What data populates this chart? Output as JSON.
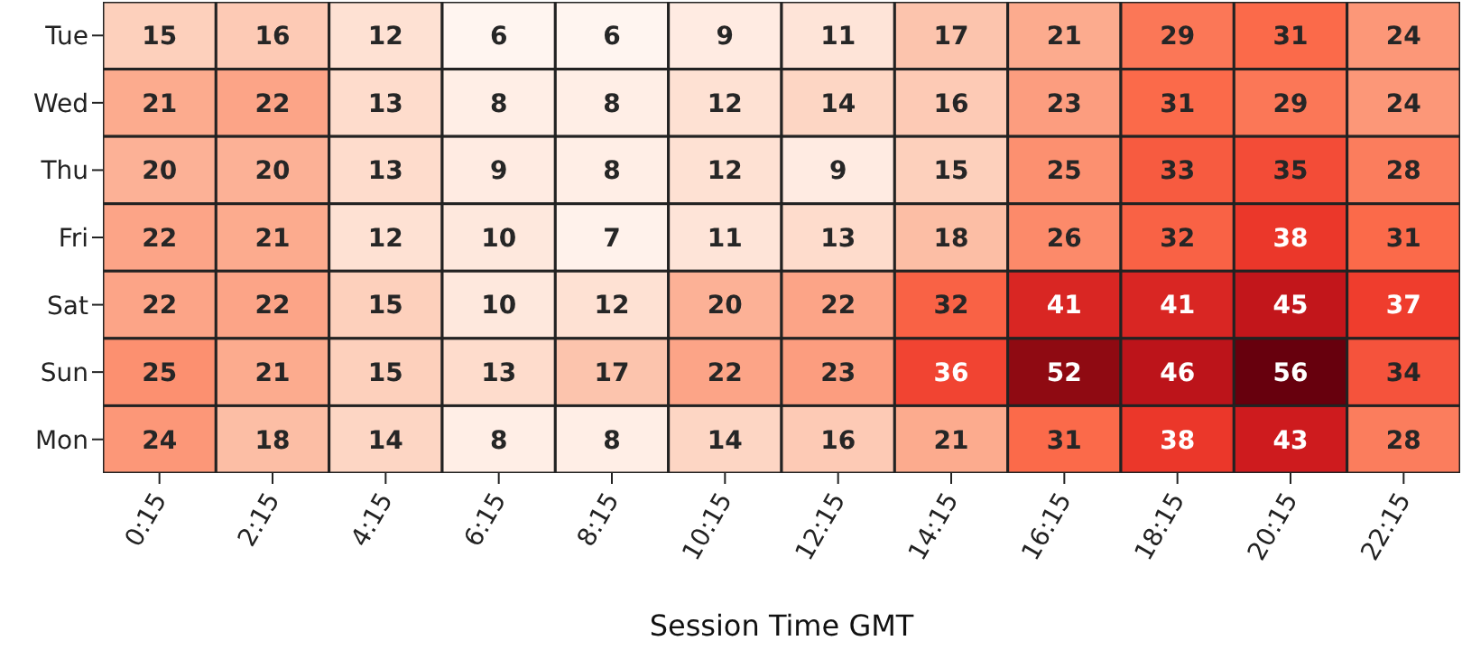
{
  "chart_data": {
    "type": "heatmap",
    "xlabel": "Session Time GMT",
    "data_labels": true,
    "categories": [
      "0:15",
      "2:15",
      "4:15",
      "6:15",
      "8:15",
      "10:15",
      "12:15",
      "14:15",
      "16:15",
      "18:15",
      "20:15",
      "22:15"
    ],
    "y_categories": [
      "Tue",
      "Wed",
      "Thu",
      "Fri",
      "Sat",
      "Sun",
      "Mon"
    ],
    "cells": [
      [
        15,
        16,
        12,
        6,
        6,
        9,
        11,
        17,
        21,
        29,
        31,
        24
      ],
      [
        21,
        22,
        13,
        8,
        8,
        12,
        14,
        16,
        23,
        31,
        29,
        24
      ],
      [
        20,
        20,
        13,
        9,
        8,
        12,
        9,
        15,
        25,
        33,
        35,
        28
      ],
      [
        22,
        21,
        12,
        10,
        7,
        11,
        13,
        18,
        26,
        32,
        38,
        31
      ],
      [
        22,
        22,
        15,
        10,
        12,
        20,
        22,
        32,
        41,
        41,
        45,
        37
      ],
      [
        25,
        21,
        15,
        13,
        17,
        22,
        23,
        36,
        52,
        46,
        56,
        34
      ],
      [
        24,
        18,
        14,
        8,
        8,
        14,
        16,
        21,
        31,
        38,
        43,
        28
      ]
    ]
  }
}
